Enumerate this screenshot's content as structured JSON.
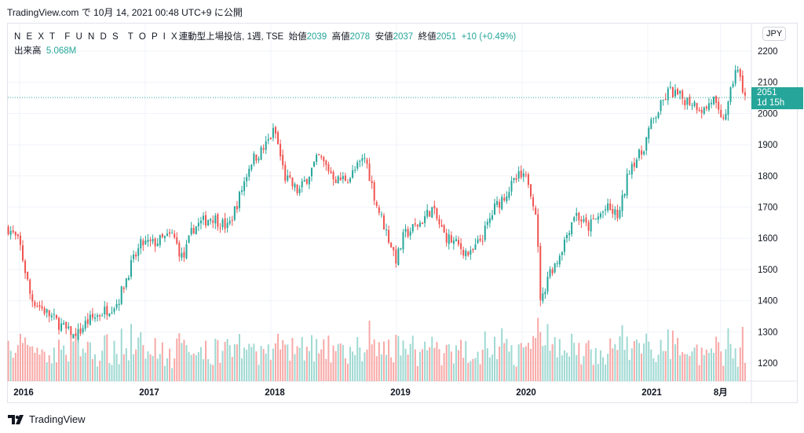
{
  "header": {
    "published": "TradingView.com で 10月 14, 2021 00:48 UTC+9 に公開"
  },
  "legend": {
    "symbol": "N E X T  F U N D S  T O P I X",
    "name": "連動型上場投信, 1週, TSE",
    "open_label": "始値",
    "open": "2039",
    "high_label": "高値",
    "high": "2078",
    "low_label": "安値",
    "low": "2037",
    "close_label": "終値",
    "close": "2051",
    "change": "+10 (+0.49%)",
    "volume_label": "出来高",
    "volume": "5.068M"
  },
  "price_axis": {
    "currency": "JPY",
    "last_price": "2051",
    "countdown": "1d 15h"
  },
  "footer": {
    "brand": "TradingView"
  },
  "colors": {
    "up": "#26a69a",
    "down": "#ef5350",
    "up_vol": "#9fd9d2",
    "down_vol": "#f7a9a7"
  },
  "chart_data": {
    "type": "candlestick",
    "interval": "1W",
    "yticks": [
      1200,
      1300,
      1400,
      1500,
      1600,
      1700,
      1800,
      1900,
      2000,
      2100,
      2200
    ],
    "ylim": [
      1140,
      2290
    ],
    "xticks": [
      {
        "t": 2016.0,
        "label": "2016"
      },
      {
        "t": 2017.0,
        "label": "2017"
      },
      {
        "t": 2018.0,
        "label": "2018"
      },
      {
        "t": 2019.0,
        "label": "2019"
      },
      {
        "t": 2020.0,
        "label": "2020"
      },
      {
        "t": 2021.0,
        "label": "2021"
      },
      {
        "t": 2021.58,
        "label": "8月"
      }
    ],
    "close_path": [
      [
        2015.91,
        1633
      ],
      [
        2016.0,
        1583
      ],
      [
        2016.09,
        1407
      ],
      [
        2016.44,
        1280
      ],
      [
        2016.53,
        1330
      ],
      [
        2016.78,
        1394
      ],
      [
        2016.88,
        1507
      ],
      [
        2016.97,
        1583
      ],
      [
        2017.06,
        1583
      ],
      [
        2017.22,
        1610
      ],
      [
        2017.3,
        1530
      ],
      [
        2017.38,
        1633
      ],
      [
        2017.53,
        1670
      ],
      [
        2017.66,
        1633
      ],
      [
        2017.75,
        1734
      ],
      [
        2017.84,
        1847
      ],
      [
        2017.94,
        1885
      ],
      [
        2018.03,
        1948
      ],
      [
        2018.11,
        1797
      ],
      [
        2018.22,
        1747
      ],
      [
        2018.38,
        1860
      ],
      [
        2018.53,
        1785
      ],
      [
        2018.63,
        1797
      ],
      [
        2018.75,
        1860
      ],
      [
        2018.84,
        1710
      ],
      [
        2019.0,
        1530
      ],
      [
        2019.06,
        1610
      ],
      [
        2019.19,
        1650
      ],
      [
        2019.28,
        1696
      ],
      [
        2019.38,
        1610
      ],
      [
        2019.59,
        1545
      ],
      [
        2019.69,
        1610
      ],
      [
        2019.78,
        1696
      ],
      [
        2019.97,
        1797
      ],
      [
        2020.05,
        1785
      ],
      [
        2020.11,
        1683
      ],
      [
        2020.15,
        1380
      ],
      [
        2020.2,
        1480
      ],
      [
        2020.28,
        1530
      ],
      [
        2020.42,
        1683
      ],
      [
        2020.52,
        1633
      ],
      [
        2020.67,
        1696
      ],
      [
        2020.77,
        1670
      ],
      [
        2020.86,
        1835
      ],
      [
        2020.95,
        1872
      ],
      [
        2021.02,
        1960
      ],
      [
        2021.17,
        2074
      ],
      [
        2021.27,
        2049
      ],
      [
        2021.36,
        2036
      ],
      [
        2021.45,
        2010
      ],
      [
        2021.52,
        2049
      ],
      [
        2021.58,
        1973
      ],
      [
        2021.64,
        2023
      ],
      [
        2021.7,
        2150
      ],
      [
        2021.78,
        2051
      ]
    ],
    "last_close": 2051
  }
}
